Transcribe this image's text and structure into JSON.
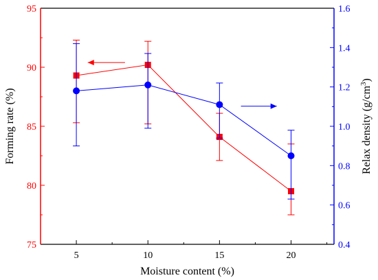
{
  "chart_data": {
    "type": "line",
    "x": [
      5,
      10,
      15,
      20
    ],
    "xlabel": "Moisture content (%)",
    "xlim": [
      2.5,
      23
    ],
    "xticks": [
      "5",
      "10",
      "15",
      "20"
    ],
    "y_left": {
      "label": "Forming rate (%)",
      "lim": [
        75,
        95
      ],
      "ticks": [
        "75",
        "80",
        "85",
        "90",
        "95"
      ],
      "color": "#ff0000"
    },
    "y_right": {
      "label": "Relax density (g/cm",
      "label_sup": "3",
      "label_tail": ")",
      "lim": [
        0.4,
        1.6
      ],
      "ticks": [
        "0.4",
        "0.6",
        "0.8",
        "1.0",
        "1.2",
        "1.4",
        "1.6"
      ],
      "color": "#0000ff"
    },
    "series": [
      {
        "axis": "left",
        "marker": "square",
        "color": "#ff0000",
        "values": [
          89.3,
          90.2,
          84.1,
          79.5
        ],
        "err_low": [
          85.3,
          85.2,
          82.1,
          77.5
        ],
        "err_high": [
          92.3,
          92.2,
          86.1,
          83.5
        ]
      },
      {
        "axis": "right",
        "marker": "circle",
        "color": "#0000ff",
        "values": [
          1.18,
          1.21,
          1.11,
          0.85
        ],
        "err_low": [
          0.9,
          0.99,
          0.94,
          0.63
        ],
        "err_high": [
          1.42,
          1.37,
          1.22,
          0.98
        ]
      }
    ],
    "annotations": [
      {
        "type": "arrow",
        "direction": "left",
        "color": "#ff0000",
        "x_from": 8.4,
        "x_to": 5.8,
        "y_left": 90.4
      },
      {
        "type": "arrow",
        "direction": "right",
        "color": "#0000ff",
        "x_from": 16.5,
        "x_to": 19.0,
        "y_left": 86.7
      }
    ],
    "grid": false,
    "legend": "none"
  }
}
